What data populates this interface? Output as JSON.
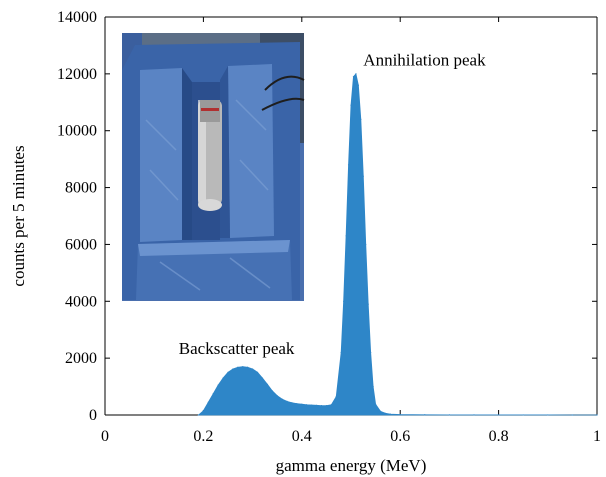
{
  "chart_data": {
    "type": "area",
    "xlabel": "gamma energy (MeV)",
    "ylabel": "counts per 5 minutes",
    "xlim": [
      0,
      1
    ],
    "ylim": [
      0,
      14000
    ],
    "xticks": [
      0,
      0.2,
      0.4,
      0.6,
      0.8,
      1
    ],
    "xtick_labels": [
      "0",
      "0.2",
      "0.4",
      "0.6",
      "0.8",
      "1"
    ],
    "yticks": [
      0,
      2000,
      4000,
      6000,
      8000,
      10000,
      12000,
      14000
    ],
    "ytick_labels": [
      "0",
      "2000",
      "4000",
      "6000",
      "8000",
      "10000",
      "12000",
      "14000"
    ],
    "grid": false,
    "series_color": "#2e86c8",
    "series": [
      {
        "x": [
          0.19,
          0.2,
          0.21,
          0.22,
          0.23,
          0.24,
          0.25,
          0.26,
          0.27,
          0.28,
          0.29,
          0.3,
          0.31,
          0.32,
          0.33,
          0.34,
          0.35,
          0.36,
          0.37,
          0.38,
          0.39,
          0.4,
          0.41,
          0.42,
          0.43,
          0.44,
          0.45,
          0.46,
          0.47,
          0.48,
          0.485,
          0.49,
          0.495,
          0.5,
          0.505,
          0.51,
          0.515,
          0.52,
          0.525,
          0.53,
          0.535,
          0.54,
          0.545,
          0.55,
          0.56,
          0.57,
          0.58,
          0.6,
          0.65,
          0.7,
          0.75,
          0.8,
          0.85,
          0.9,
          0.95,
          1.0
        ],
        "y": [
          0,
          150,
          450,
          750,
          1050,
          1300,
          1500,
          1620,
          1680,
          1700,
          1680,
          1620,
          1500,
          1300,
          1080,
          850,
          680,
          560,
          480,
          430,
          400,
          380,
          360,
          350,
          340,
          330,
          330,
          360,
          650,
          2200,
          4000,
          6300,
          8800,
          10900,
          11900,
          12000,
          11600,
          10400,
          8400,
          6000,
          3900,
          2200,
          1000,
          380,
          130,
          60,
          30,
          15,
          8,
          5,
          4,
          3,
          2,
          2,
          1,
          1
        ]
      }
    ],
    "annotations": [
      {
        "text": "Annihilation peak",
        "x": 0.525,
        "y": 12300
      },
      {
        "text": "Backscatter peak",
        "x": 0.15,
        "y": 2150
      }
    ]
  },
  "inset_photo": {
    "description_icon": "detector-photo",
    "colors": {
      "blue": "#3a64a8",
      "blue_dark": "#274a86",
      "blue_light": "#5a84c4",
      "metal": "#c8c8c8",
      "metal_dark": "#8a8a8a"
    }
  }
}
